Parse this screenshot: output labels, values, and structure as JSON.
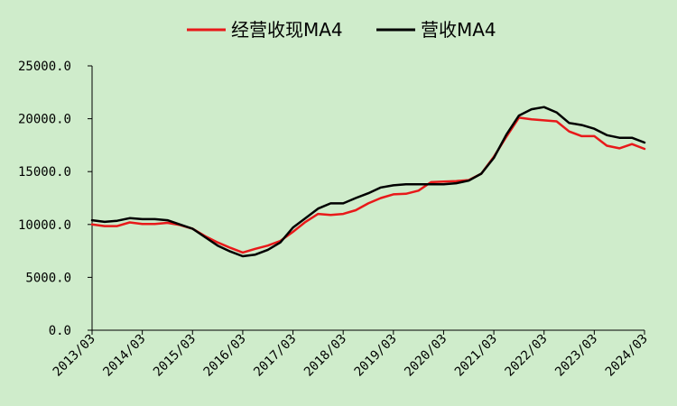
{
  "chart_data": {
    "type": "line",
    "title": "",
    "xlabel": "",
    "ylabel": "",
    "ylim": [
      0,
      25000
    ],
    "yticks": [
      "0.0",
      "5000.0",
      "10000.0",
      "15000.0",
      "20000.0",
      "25000.0"
    ],
    "xticks": [
      "2013/03",
      "2014/03",
      "2015/03",
      "2016/03",
      "2017/03",
      "2018/03",
      "2019/03",
      "2020/03",
      "2021/03",
      "2022/03",
      "2023/03",
      "2024/03"
    ],
    "x": [
      "2013/03",
      "2013/06",
      "2013/09",
      "2013/12",
      "2014/03",
      "2014/06",
      "2014/09",
      "2014/12",
      "2015/03",
      "2015/06",
      "2015/09",
      "2015/12",
      "2016/03",
      "2016/06",
      "2016/09",
      "2016/12",
      "2017/03",
      "2017/06",
      "2017/09",
      "2017/12",
      "2018/03",
      "2018/06",
      "2018/09",
      "2018/12",
      "2019/03",
      "2019/06",
      "2019/09",
      "2019/12",
      "2020/03",
      "2020/06",
      "2020/09",
      "2020/12",
      "2021/03",
      "2021/06",
      "2021/09",
      "2021/12",
      "2022/03",
      "2022/06",
      "2022/09",
      "2022/12",
      "2023/03",
      "2023/06",
      "2023/09",
      "2023/12",
      "2024/03"
    ],
    "grid": false,
    "legend_position": "top",
    "series": [
      {
        "name": "经营收现MA4",
        "color": "#e8191a",
        "values": [
          10000,
          9850,
          9850,
          10200,
          10050,
          10050,
          10150,
          9950,
          9600,
          8900,
          8300,
          7800,
          7350,
          7700,
          8000,
          8450,
          9300,
          10250,
          11000,
          10900,
          11000,
          11350,
          12000,
          12500,
          12850,
          12900,
          13200,
          14000,
          14050,
          14100,
          14200,
          14800,
          16400,
          18300,
          20100,
          19950,
          19850,
          19750,
          18800,
          18350,
          18350,
          17450,
          17200,
          17600,
          17150
        ]
      },
      {
        "name": "营收MA4",
        "color": "#000000",
        "values": [
          10400,
          10250,
          10350,
          10600,
          10500,
          10500,
          10400,
          10000,
          9600,
          8800,
          8000,
          7450,
          7000,
          7150,
          7600,
          8300,
          9700,
          10600,
          11500,
          12000,
          12000,
          12500,
          12950,
          13500,
          13700,
          13800,
          13800,
          13800,
          13800,
          13900,
          14150,
          14800,
          16300,
          18500,
          20300,
          20900,
          21100,
          20600,
          19600,
          19400,
          19050,
          18450,
          18200,
          18200,
          17750
        ]
      }
    ]
  }
}
